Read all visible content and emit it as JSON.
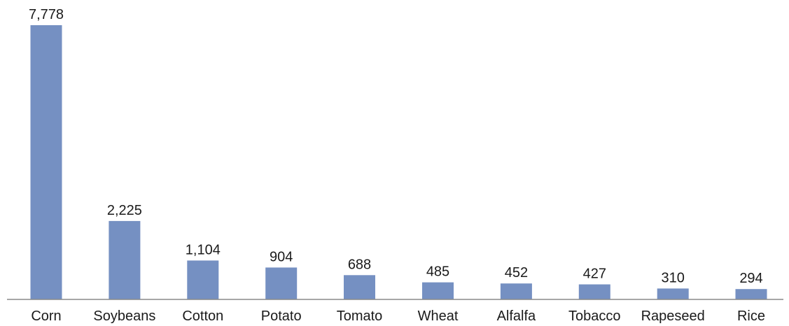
{
  "chart_data": {
    "type": "bar",
    "categories": [
      "Corn",
      "Soybeans",
      "Cotton",
      "Potato",
      "Tomato",
      "Wheat",
      "Alfalfa",
      "Tobacco",
      "Rapeseed",
      "Rice"
    ],
    "values": [
      7778,
      2225,
      1104,
      904,
      688,
      485,
      452,
      427,
      310,
      294
    ],
    "value_labels": [
      "7,778",
      "2,225",
      "1,104",
      "904",
      "688",
      "485",
      "452",
      "427",
      "310",
      "294"
    ],
    "title": "",
    "xlabel": "",
    "ylabel": "",
    "ylim": [
      0,
      7778
    ],
    "grid": false,
    "legend": "none",
    "bar_color": "#7590c2",
    "axis_color": "#8a8a8a"
  }
}
